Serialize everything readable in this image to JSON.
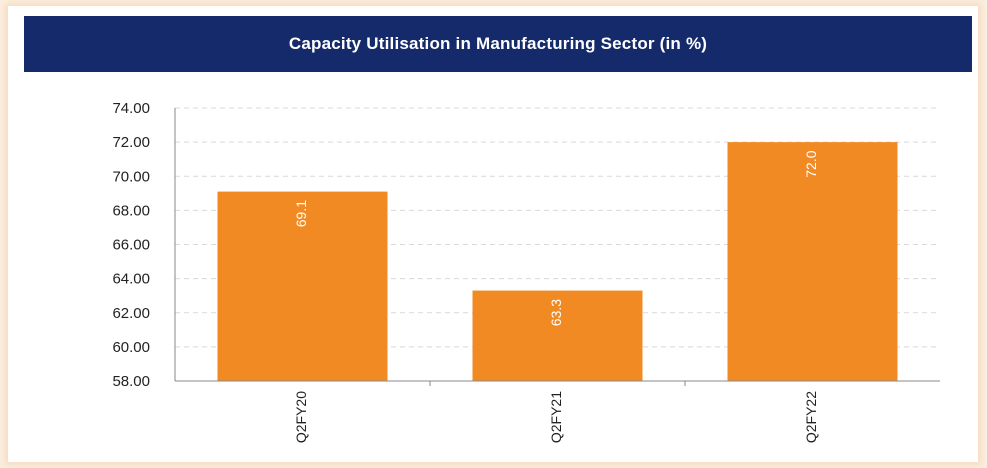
{
  "chart_data": {
    "type": "bar",
    "title": "Capacity Utilisation in Manufacturing Sector (in %)",
    "categories": [
      "Q2FY20",
      "Q2FY21",
      "Q2FY22"
    ],
    "values": [
      69.1,
      63.3,
      72.0
    ],
    "data_labels": [
      "69.1",
      "63.3",
      "72.0"
    ],
    "ylim": [
      58,
      74
    ],
    "yticks": [
      "58.00",
      "60.00",
      "62.00",
      "64.00",
      "66.00",
      "68.00",
      "70.00",
      "72.00",
      "74.00"
    ],
    "grid": "horizontal dashed",
    "legend": "none",
    "xlabel": "",
    "ylabel": ""
  },
  "colors": {
    "bar": "#f28a23",
    "title_background": "#152a6b",
    "title_text": "#ffffff",
    "grid": "#d9d9d9",
    "axis": "#888888"
  }
}
